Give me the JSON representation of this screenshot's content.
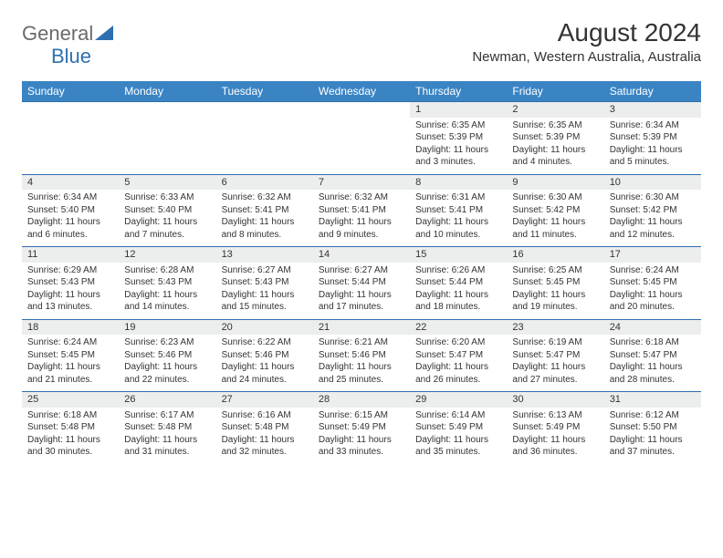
{
  "logo": {
    "general": "General",
    "blue": "Blue"
  },
  "title": "August 2024",
  "location": "Newman, Western Australia, Australia",
  "colors": {
    "header_bg": "#3a84c4",
    "header_text": "#ffffff",
    "rule": "#2e6fb0",
    "daynum_bg": "#eceded",
    "text": "#333333",
    "logo_gray": "#6a6a6a",
    "logo_blue": "#2e6fb0"
  },
  "weekdays": [
    "Sunday",
    "Monday",
    "Tuesday",
    "Wednesday",
    "Thursday",
    "Friday",
    "Saturday"
  ],
  "weeks": [
    [
      null,
      null,
      null,
      null,
      {
        "n": "1",
        "sr": "Sunrise: 6:35 AM",
        "ss": "Sunset: 5:39 PM",
        "d1": "Daylight: 11 hours",
        "d2": "and 3 minutes."
      },
      {
        "n": "2",
        "sr": "Sunrise: 6:35 AM",
        "ss": "Sunset: 5:39 PM",
        "d1": "Daylight: 11 hours",
        "d2": "and 4 minutes."
      },
      {
        "n": "3",
        "sr": "Sunrise: 6:34 AM",
        "ss": "Sunset: 5:39 PM",
        "d1": "Daylight: 11 hours",
        "d2": "and 5 minutes."
      }
    ],
    [
      {
        "n": "4",
        "sr": "Sunrise: 6:34 AM",
        "ss": "Sunset: 5:40 PM",
        "d1": "Daylight: 11 hours",
        "d2": "and 6 minutes."
      },
      {
        "n": "5",
        "sr": "Sunrise: 6:33 AM",
        "ss": "Sunset: 5:40 PM",
        "d1": "Daylight: 11 hours",
        "d2": "and 7 minutes."
      },
      {
        "n": "6",
        "sr": "Sunrise: 6:32 AM",
        "ss": "Sunset: 5:41 PM",
        "d1": "Daylight: 11 hours",
        "d2": "and 8 minutes."
      },
      {
        "n": "7",
        "sr": "Sunrise: 6:32 AM",
        "ss": "Sunset: 5:41 PM",
        "d1": "Daylight: 11 hours",
        "d2": "and 9 minutes."
      },
      {
        "n": "8",
        "sr": "Sunrise: 6:31 AM",
        "ss": "Sunset: 5:41 PM",
        "d1": "Daylight: 11 hours",
        "d2": "and 10 minutes."
      },
      {
        "n": "9",
        "sr": "Sunrise: 6:30 AM",
        "ss": "Sunset: 5:42 PM",
        "d1": "Daylight: 11 hours",
        "d2": "and 11 minutes."
      },
      {
        "n": "10",
        "sr": "Sunrise: 6:30 AM",
        "ss": "Sunset: 5:42 PM",
        "d1": "Daylight: 11 hours",
        "d2": "and 12 minutes."
      }
    ],
    [
      {
        "n": "11",
        "sr": "Sunrise: 6:29 AM",
        "ss": "Sunset: 5:43 PM",
        "d1": "Daylight: 11 hours",
        "d2": "and 13 minutes."
      },
      {
        "n": "12",
        "sr": "Sunrise: 6:28 AM",
        "ss": "Sunset: 5:43 PM",
        "d1": "Daylight: 11 hours",
        "d2": "and 14 minutes."
      },
      {
        "n": "13",
        "sr": "Sunrise: 6:27 AM",
        "ss": "Sunset: 5:43 PM",
        "d1": "Daylight: 11 hours",
        "d2": "and 15 minutes."
      },
      {
        "n": "14",
        "sr": "Sunrise: 6:27 AM",
        "ss": "Sunset: 5:44 PM",
        "d1": "Daylight: 11 hours",
        "d2": "and 17 minutes."
      },
      {
        "n": "15",
        "sr": "Sunrise: 6:26 AM",
        "ss": "Sunset: 5:44 PM",
        "d1": "Daylight: 11 hours",
        "d2": "and 18 minutes."
      },
      {
        "n": "16",
        "sr": "Sunrise: 6:25 AM",
        "ss": "Sunset: 5:45 PM",
        "d1": "Daylight: 11 hours",
        "d2": "and 19 minutes."
      },
      {
        "n": "17",
        "sr": "Sunrise: 6:24 AM",
        "ss": "Sunset: 5:45 PM",
        "d1": "Daylight: 11 hours",
        "d2": "and 20 minutes."
      }
    ],
    [
      {
        "n": "18",
        "sr": "Sunrise: 6:24 AM",
        "ss": "Sunset: 5:45 PM",
        "d1": "Daylight: 11 hours",
        "d2": "and 21 minutes."
      },
      {
        "n": "19",
        "sr": "Sunrise: 6:23 AM",
        "ss": "Sunset: 5:46 PM",
        "d1": "Daylight: 11 hours",
        "d2": "and 22 minutes."
      },
      {
        "n": "20",
        "sr": "Sunrise: 6:22 AM",
        "ss": "Sunset: 5:46 PM",
        "d1": "Daylight: 11 hours",
        "d2": "and 24 minutes."
      },
      {
        "n": "21",
        "sr": "Sunrise: 6:21 AM",
        "ss": "Sunset: 5:46 PM",
        "d1": "Daylight: 11 hours",
        "d2": "and 25 minutes."
      },
      {
        "n": "22",
        "sr": "Sunrise: 6:20 AM",
        "ss": "Sunset: 5:47 PM",
        "d1": "Daylight: 11 hours",
        "d2": "and 26 minutes."
      },
      {
        "n": "23",
        "sr": "Sunrise: 6:19 AM",
        "ss": "Sunset: 5:47 PM",
        "d1": "Daylight: 11 hours",
        "d2": "and 27 minutes."
      },
      {
        "n": "24",
        "sr": "Sunrise: 6:18 AM",
        "ss": "Sunset: 5:47 PM",
        "d1": "Daylight: 11 hours",
        "d2": "and 28 minutes."
      }
    ],
    [
      {
        "n": "25",
        "sr": "Sunrise: 6:18 AM",
        "ss": "Sunset: 5:48 PM",
        "d1": "Daylight: 11 hours",
        "d2": "and 30 minutes."
      },
      {
        "n": "26",
        "sr": "Sunrise: 6:17 AM",
        "ss": "Sunset: 5:48 PM",
        "d1": "Daylight: 11 hours",
        "d2": "and 31 minutes."
      },
      {
        "n": "27",
        "sr": "Sunrise: 6:16 AM",
        "ss": "Sunset: 5:48 PM",
        "d1": "Daylight: 11 hours",
        "d2": "and 32 minutes."
      },
      {
        "n": "28",
        "sr": "Sunrise: 6:15 AM",
        "ss": "Sunset: 5:49 PM",
        "d1": "Daylight: 11 hours",
        "d2": "and 33 minutes."
      },
      {
        "n": "29",
        "sr": "Sunrise: 6:14 AM",
        "ss": "Sunset: 5:49 PM",
        "d1": "Daylight: 11 hours",
        "d2": "and 35 minutes."
      },
      {
        "n": "30",
        "sr": "Sunrise: 6:13 AM",
        "ss": "Sunset: 5:49 PM",
        "d1": "Daylight: 11 hours",
        "d2": "and 36 minutes."
      },
      {
        "n": "31",
        "sr": "Sunrise: 6:12 AM",
        "ss": "Sunset: 5:50 PM",
        "d1": "Daylight: 11 hours",
        "d2": "and 37 minutes."
      }
    ]
  ]
}
